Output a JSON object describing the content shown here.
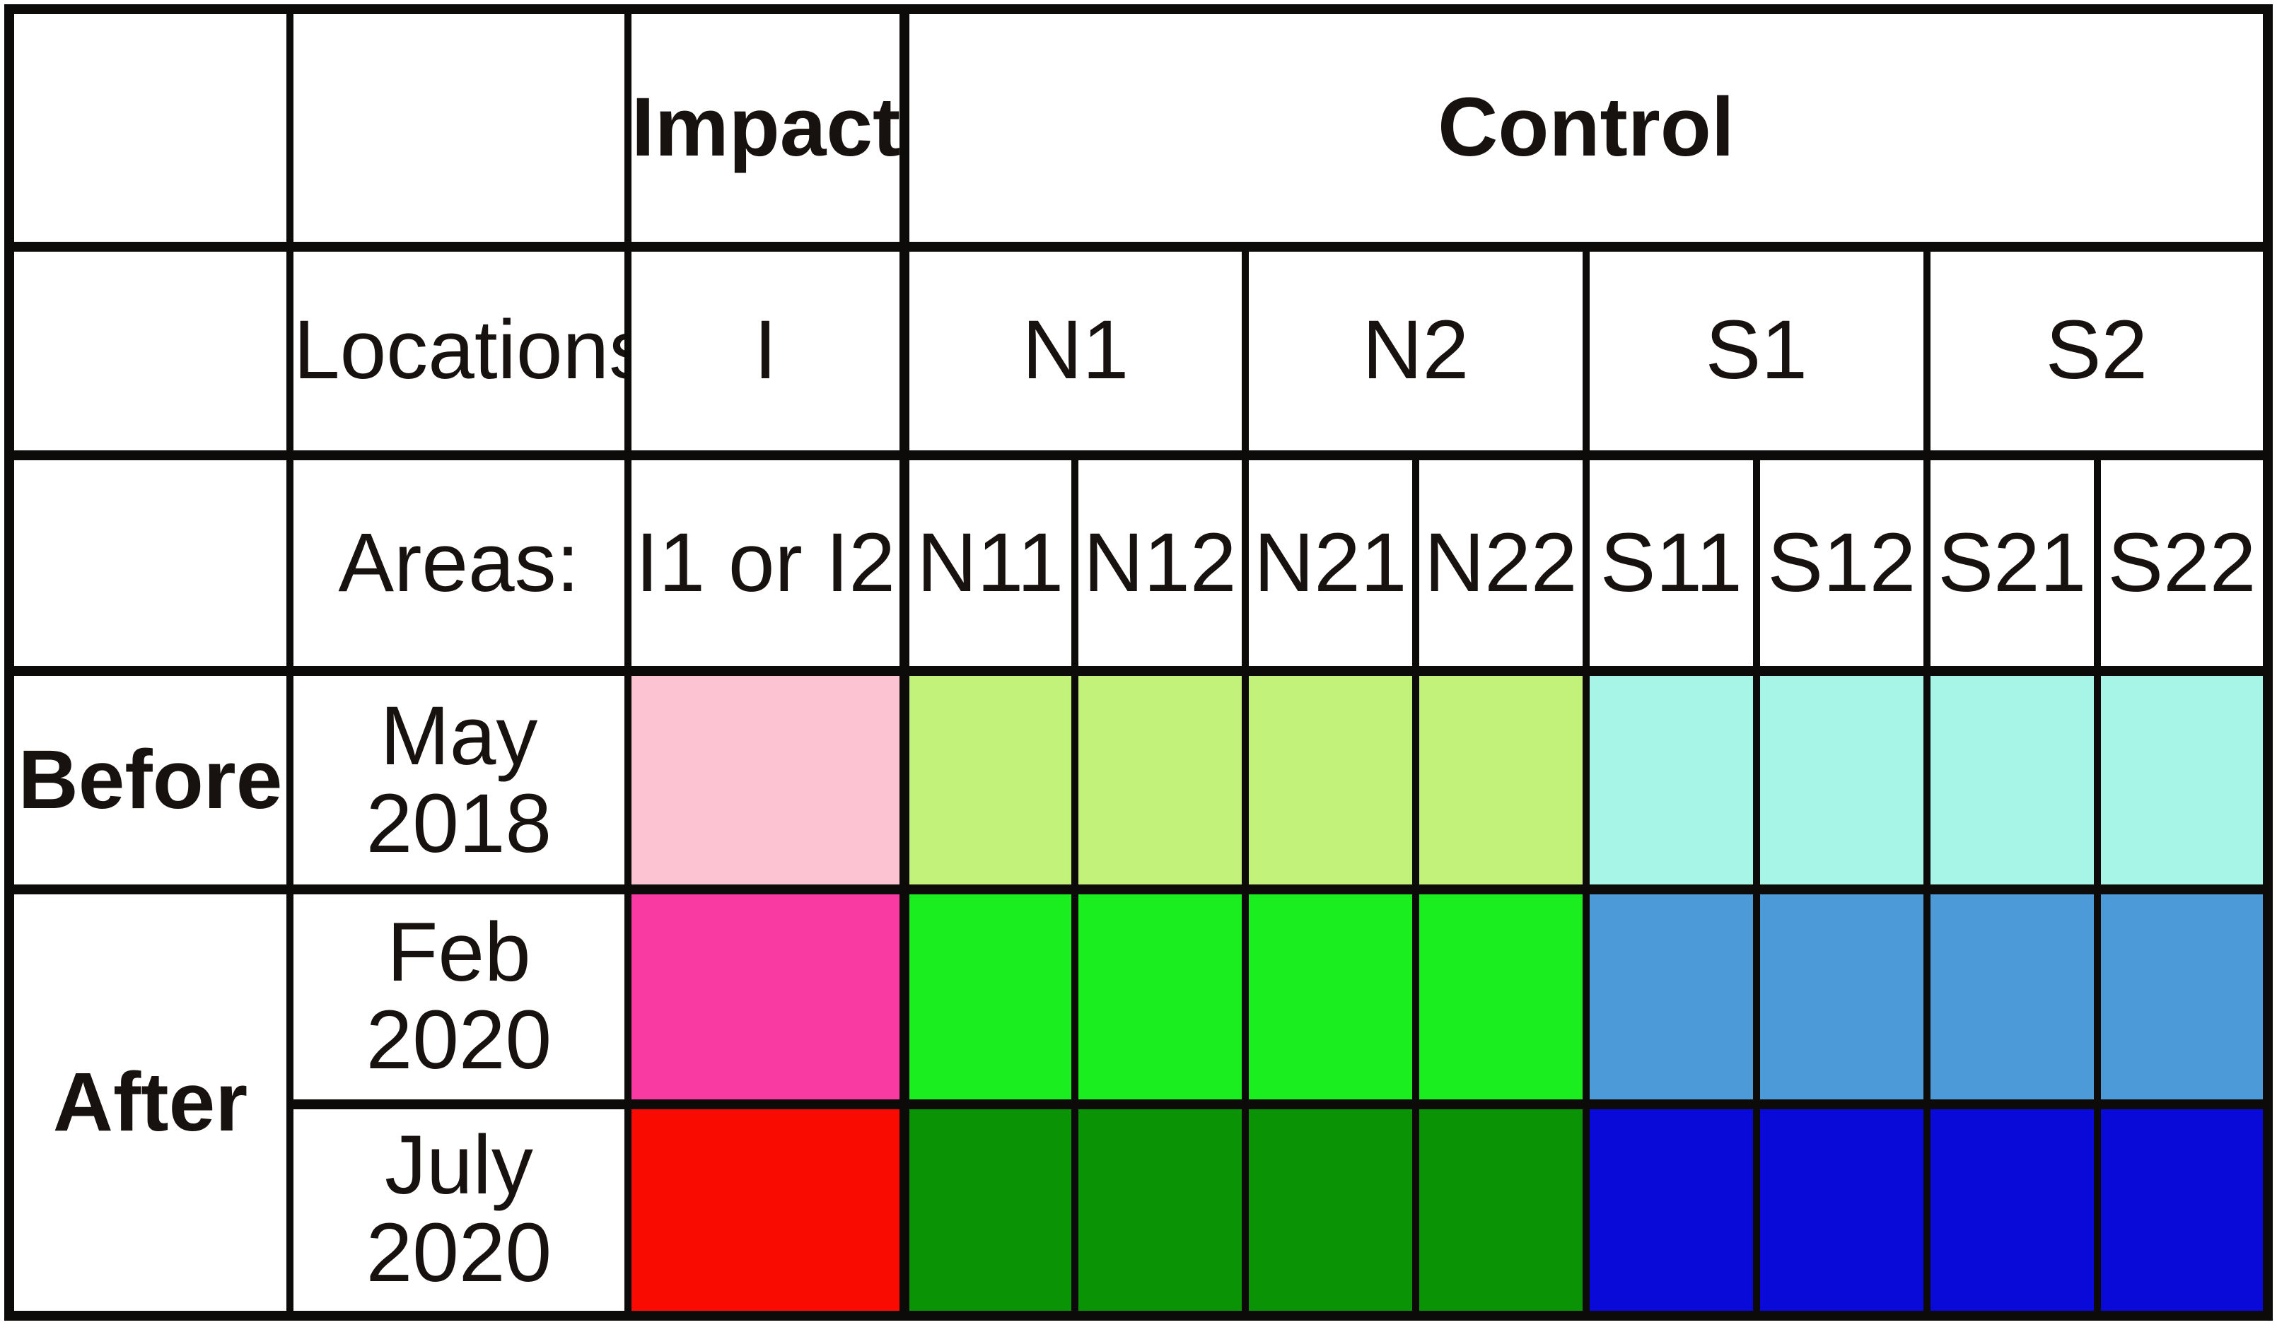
{
  "header": {
    "impact": "Impact",
    "control": "Control"
  },
  "locations": {
    "label": "Locations:",
    "impact": "I",
    "groups": [
      "N1",
      "N2",
      "S1",
      "S2"
    ]
  },
  "areas": {
    "label": "Areas:",
    "impact": "I1 or I2",
    "codes": [
      "N11",
      "N12",
      "N21",
      "N22",
      "S11",
      "S12",
      "S21",
      "S22"
    ]
  },
  "periods": {
    "before": "Before",
    "after": "After"
  },
  "times": {
    "before": "May 2018",
    "after1": "Feb 2020",
    "after2": "July 2020"
  },
  "colors": {
    "may2018_impact": "#fcc3d2",
    "may2018_north": "#c2f279",
    "may2018_south": "#a6f5e6",
    "feb2020_impact": "#f93aa3",
    "feb2020_north": "#1aee1e",
    "feb2020_south": "#4d9ad8",
    "july2020_impact": "#fa0b02",
    "july2020_north": "#0a9405",
    "july2020_south": "#0909d8"
  }
}
